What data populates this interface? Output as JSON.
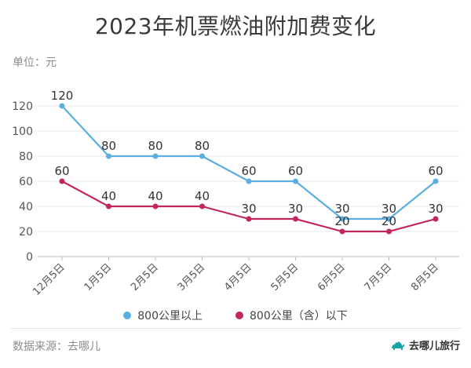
{
  "header": {
    "title": "2023年机票燃油附加费变化",
    "unit": "单位：元"
  },
  "footer": {
    "source": "数据来源：去哪儿",
    "brand": "去哪儿旅行"
  },
  "chart_data": {
    "type": "line",
    "title": "2023年机票燃油附加费变化",
    "xlabel": "",
    "ylabel": "单位：元",
    "categories": [
      "12月5日",
      "1月5日",
      "2月5日",
      "3月5日",
      "4月5日",
      "5月5日",
      "6月5日",
      "7月5日",
      "8月5日"
    ],
    "ylim": [
      0,
      120
    ],
    "yticks": [
      0,
      20,
      40,
      60,
      80,
      100,
      120
    ],
    "grid": true,
    "legend_position": "bottom",
    "series": [
      {
        "name": "800公里以上",
        "color": "#5aaee0",
        "values": [
          120,
          80,
          80,
          80,
          60,
          60,
          30,
          30,
          60
        ]
      },
      {
        "name": "800公里（含）以下",
        "color": "#c2275a",
        "values": [
          60,
          40,
          40,
          40,
          30,
          30,
          20,
          20,
          30
        ]
      }
    ]
  }
}
